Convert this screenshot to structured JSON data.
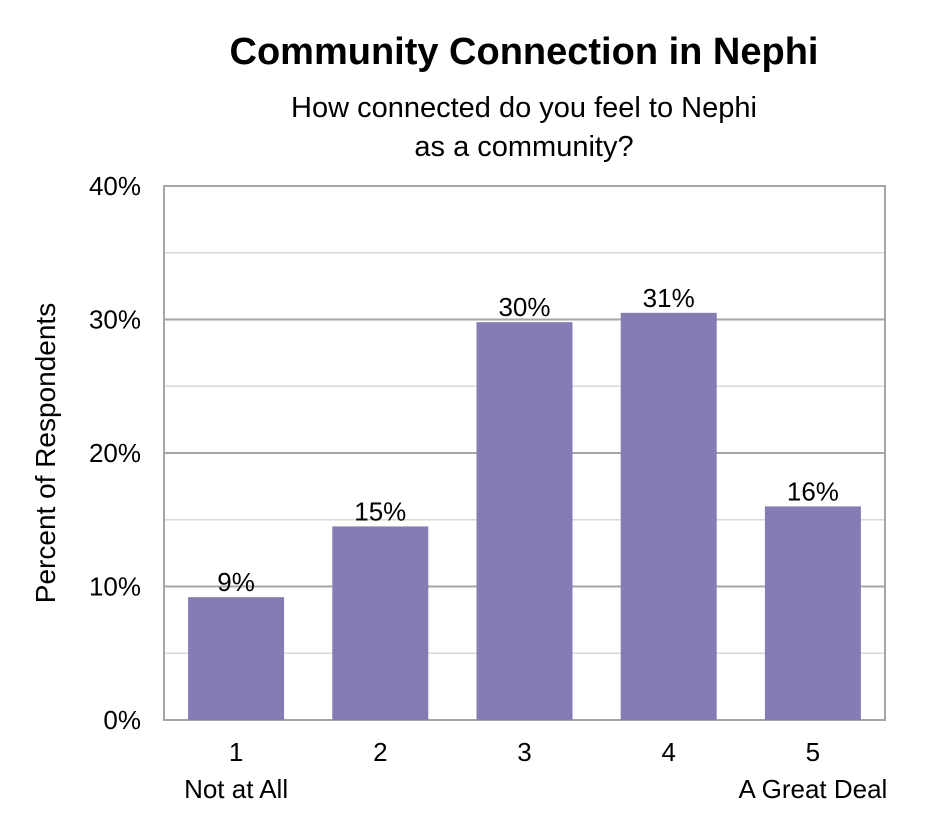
{
  "chart_data": {
    "type": "bar",
    "title": "Community Connection in Nephi",
    "subtitle": [
      "How connected do you feel to Nephi",
      "as a community?"
    ],
    "ylabel": "Percent of Respondents",
    "xlabel": "",
    "categories": [
      "1",
      "2",
      "3",
      "4",
      "5"
    ],
    "category_sublabels": [
      "Not at All",
      "",
      "",
      "",
      "A Great Deal"
    ],
    "values": [
      9,
      15,
      30,
      31,
      16
    ],
    "value_positions": [
      9.2,
      14.5,
      29.8,
      30.5,
      16.0
    ],
    "data_labels": [
      "9%",
      "15%",
      "30%",
      "31%",
      "16%"
    ],
    "ylim": [
      0,
      40
    ],
    "yticks": [
      0,
      10,
      20,
      30,
      40
    ],
    "ytick_labels": [
      "0%",
      "10%",
      "20%",
      "30%",
      "40%"
    ],
    "minor_gridlines": [
      5,
      15,
      25,
      35
    ],
    "grid": true,
    "legend": "none",
    "colors": {
      "bar": "#877bb4",
      "gridline": "#a6a6a6",
      "minor_gridline": "#d9d9d9"
    }
  }
}
